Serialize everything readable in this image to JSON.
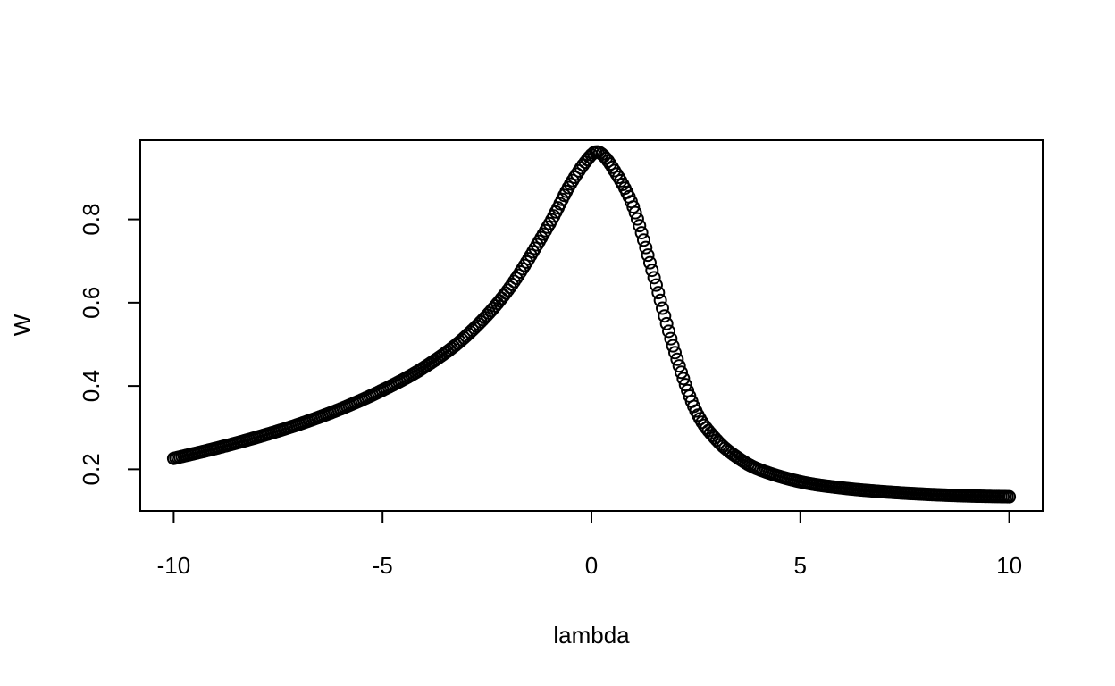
{
  "chart_data": {
    "type": "scatter",
    "xlabel": "lambda",
    "ylabel": "W",
    "xlim": [
      -10.8,
      10.8
    ],
    "ylim": [
      0.1,
      0.99
    ],
    "x_ticks": [
      -10,
      -5,
      0,
      5,
      10
    ],
    "x_tick_labels": [
      "-10",
      "-5",
      "0",
      "5",
      "10"
    ],
    "y_ticks": [
      0.2,
      0.4,
      0.6,
      0.8
    ],
    "y_tick_labels": [
      "0.2",
      "0.4",
      "0.6",
      "0.8"
    ],
    "grid": false,
    "marker": "open-circle",
    "series": [
      {
        "color": "#000000",
        "x_range": [
          -10,
          10
        ],
        "points": [
          [
            -10,
            0.226
          ],
          [
            -9,
            0.25
          ],
          [
            -8,
            0.277
          ],
          [
            -7,
            0.308
          ],
          [
            -6,
            0.345
          ],
          [
            -5,
            0.39
          ],
          [
            -4,
            0.445
          ],
          [
            -3,
            0.52
          ],
          [
            -2,
            0.63
          ],
          [
            -1,
            0.79
          ],
          [
            -0.5,
            0.885
          ],
          [
            0,
            0.955
          ],
          [
            0.2,
            0.96
          ],
          [
            0.5,
            0.925
          ],
          [
            1,
            0.83
          ],
          [
            1.5,
            0.66
          ],
          [
            2,
            0.48
          ],
          [
            2.5,
            0.34
          ],
          [
            3,
            0.27
          ],
          [
            3.5,
            0.228
          ],
          [
            4,
            0.2
          ],
          [
            5,
            0.17
          ],
          [
            6,
            0.155
          ],
          [
            7,
            0.146
          ],
          [
            8,
            0.14
          ],
          [
            9,
            0.136
          ],
          [
            10,
            0.134
          ]
        ]
      }
    ]
  }
}
